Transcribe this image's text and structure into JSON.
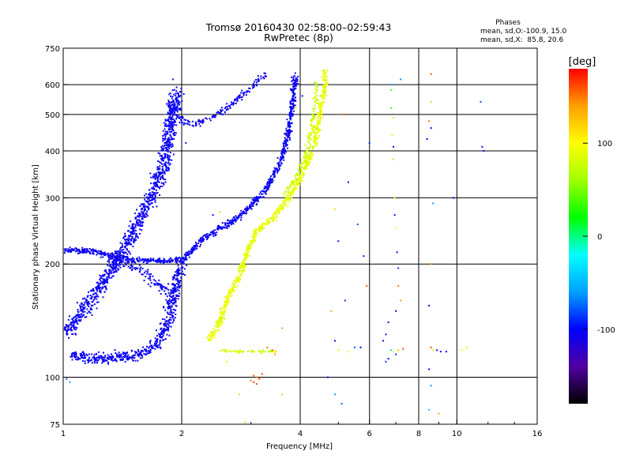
{
  "chart_data": {
    "type": "scatter",
    "title": "Tromsø 20160430 02:58:00–02:59:43",
    "subtitle": "RwPretec (8p)",
    "xlabel": "Frequency [MHz]",
    "ylabel": "Stationary phase Virtual Height [km]",
    "x_scale": "log",
    "y_scale": "log",
    "xlim": [
      1,
      16
    ],
    "ylim": [
      75,
      750
    ],
    "x_ticks": [
      1,
      2,
      4,
      6,
      8,
      10,
      16
    ],
    "y_ticks": [
      75,
      100,
      200,
      300,
      400,
      500,
      600,
      750
    ],
    "x_gridlines": [
      2,
      4,
      6,
      8,
      10
    ],
    "y_gridlines": [
      100,
      200,
      300,
      400,
      500,
      600
    ],
    "grid": true,
    "stats": {
      "heading": "Phases",
      "line1": "mean, sd,O:-100.9, 15.0",
      "line2": "mean, sd,X:  85.8, 20.6"
    },
    "colorbar": {
      "label": "[deg]",
      "range": [
        -180,
        180
      ],
      "ticks": [
        100,
        0,
        -100
      ],
      "colors": [
        "#000000",
        "#5000a0",
        "#0000ff",
        "#00a0ff",
        "#00ffff",
        "#00ff00",
        "#a0ff00",
        "#ffff00",
        "#ffa000",
        "#ff0000"
      ]
    },
    "traces": [
      {
        "mode": "O",
        "phase_center": -105,
        "phase_spread": 15,
        "polyline": [
          [
            1.0,
            218
          ],
          [
            1.18,
            216
          ],
          [
            1.35,
            210
          ],
          [
            1.5,
            205
          ],
          [
            1.65,
            205
          ],
          [
            1.8,
            203
          ],
          [
            1.9,
            205
          ],
          [
            2.0,
            205
          ],
          [
            2.1,
            215
          ],
          [
            2.25,
            232
          ],
          [
            2.45,
            245
          ],
          [
            2.7,
            260
          ],
          [
            3.0,
            285
          ],
          [
            3.3,
            320
          ],
          [
            3.55,
            370
          ],
          [
            3.7,
            430
          ],
          [
            3.8,
            500
          ],
          [
            3.85,
            580
          ],
          [
            3.9,
            640
          ]
        ],
        "spread": 0.025,
        "density": 45
      },
      {
        "mode": "O",
        "phase_center": -105,
        "phase_spread": 15,
        "polyline": [
          [
            1.05,
            115
          ],
          [
            1.2,
            112
          ],
          [
            1.4,
            113
          ],
          [
            1.55,
            114
          ],
          [
            1.65,
            118
          ],
          [
            1.75,
            125
          ],
          [
            1.85,
            140
          ],
          [
            1.9,
            165
          ],
          [
            2.0,
            200
          ]
        ],
        "spread": 0.05,
        "density": 55
      },
      {
        "mode": "O",
        "phase_center": -105,
        "phase_spread": 15,
        "polyline": [
          [
            1.0,
            130
          ],
          [
            1.1,
            145
          ],
          [
            1.2,
            165
          ],
          [
            1.35,
            200
          ],
          [
            1.5,
            240
          ],
          [
            1.6,
            275
          ],
          [
            1.7,
            310
          ],
          [
            1.8,
            370
          ],
          [
            1.85,
            430
          ],
          [
            1.9,
            520
          ],
          [
            1.95,
            580
          ]
        ],
        "spread": 0.06,
        "density": 65
      },
      {
        "mode": "O",
        "phase_center": -105,
        "phase_spread": 15,
        "polyline": [
          [
            1.85,
            540
          ],
          [
            2.0,
            480
          ],
          [
            2.15,
            470
          ],
          [
            2.35,
            490
          ],
          [
            2.6,
            520
          ],
          [
            2.85,
            560
          ],
          [
            3.05,
            600
          ],
          [
            3.3,
            640
          ]
        ],
        "spread": 0.03,
        "density": 25
      },
      {
        "mode": "O",
        "phase_center": -105,
        "phase_spread": 15,
        "polyline": [
          [
            1.3,
            210
          ],
          [
            1.45,
            200
          ],
          [
            1.6,
            190
          ],
          [
            1.75,
            175
          ],
          [
            1.9,
            165
          ]
        ],
        "spread": 0.05,
        "density": 25
      },
      {
        "mode": "X",
        "phase_center": 90,
        "phase_spread": 20,
        "polyline": [
          [
            2.35,
            125
          ],
          [
            2.5,
            140
          ],
          [
            2.6,
            160
          ],
          [
            2.8,
            185
          ],
          [
            2.95,
            220
          ],
          [
            3.1,
            245
          ],
          [
            3.4,
            265
          ],
          [
            3.7,
            295
          ],
          [
            3.95,
            330
          ],
          [
            4.15,
            370
          ],
          [
            4.35,
            420
          ],
          [
            4.5,
            500
          ],
          [
            4.6,
            580
          ],
          [
            4.65,
            650
          ]
        ],
        "spread": 0.025,
        "density": 45
      },
      {
        "mode": "X",
        "phase_center": 80,
        "phase_spread": 30,
        "polyline": [
          [
            2.5,
            118
          ],
          [
            2.8,
            117
          ],
          [
            3.0,
            117
          ],
          [
            3.2,
            117
          ],
          [
            3.5,
            117
          ]
        ],
        "spread": 0.012,
        "density": 16
      },
      {
        "mode": "X",
        "phase_center": 80,
        "phase_spread": 20,
        "polyline": [
          [
            3.6,
            300
          ],
          [
            3.9,
            340
          ],
          [
            4.1,
            380
          ],
          [
            4.25,
            440
          ],
          [
            4.35,
            520
          ],
          [
            4.4,
            600
          ]
        ],
        "spread": 0.02,
        "density": 20
      }
    ],
    "scattered_points": [
      [
        6.8,
        600,
        -60
      ],
      [
        6.8,
        580,
        40
      ],
      [
        6.8,
        520,
        30
      ],
      [
        6.9,
        490,
        110
      ],
      [
        6.85,
        440,
        90
      ],
      [
        6.9,
        410,
        -100
      ],
      [
        6.9,
        380,
        120
      ],
      [
        6.95,
        300,
        80
      ],
      [
        6.95,
        270,
        -110
      ],
      [
        7.0,
        250,
        100
      ],
      [
        7.05,
        215,
        -100
      ],
      [
        7.1,
        195,
        -90
      ],
      [
        7.1,
        175,
        150
      ],
      [
        7.2,
        160,
        140
      ],
      [
        7.0,
        150,
        -100
      ],
      [
        6.7,
        140,
        -100
      ],
      [
        6.6,
        130,
        -95
      ],
      [
        6.5,
        125,
        -100
      ],
      [
        6.8,
        118,
        -40
      ],
      [
        6.9,
        117,
        90
      ],
      [
        7.1,
        118,
        130
      ],
      [
        7.3,
        119,
        160
      ],
      [
        7.0,
        115,
        -90
      ],
      [
        6.7,
        112,
        -100
      ],
      [
        6.6,
        110,
        -90
      ],
      [
        8.6,
        640,
        160
      ],
      [
        8.6,
        540,
        120
      ],
      [
        8.5,
        480,
        150
      ],
      [
        8.6,
        460,
        -100
      ],
      [
        8.4,
        430,
        -110
      ],
      [
        8.7,
        290,
        -60
      ],
      [
        8.6,
        200,
        150
      ],
      [
        8.5,
        155,
        -100
      ],
      [
        8.6,
        120,
        160
      ],
      [
        8.7,
        118,
        110
      ],
      [
        8.9,
        118,
        -100
      ],
      [
        9.1,
        117,
        -100
      ],
      [
        9.4,
        117,
        -110
      ],
      [
        8.5,
        105,
        -100
      ],
      [
        8.6,
        95,
        -60
      ],
      [
        8.5,
        82,
        -40
      ],
      [
        9.0,
        80,
        140
      ],
      [
        9.8,
        300,
        -100
      ],
      [
        10.3,
        118,
        100
      ],
      [
        10.6,
        120,
        80
      ],
      [
        11.5,
        540,
        -80
      ],
      [
        11.6,
        410,
        -110
      ],
      [
        11.7,
        400,
        -100
      ],
      [
        5.1,
        500,
        150
      ],
      [
        5.3,
        330,
        -100
      ],
      [
        5.6,
        255,
        -80
      ],
      [
        5.8,
        210,
        -100
      ],
      [
        5.9,
        175,
        160
      ],
      [
        5.0,
        230,
        -110
      ],
      [
        4.9,
        280,
        120
      ],
      [
        5.5,
        120,
        -80
      ],
      [
        5.7,
        120,
        -100
      ],
      [
        5.3,
        117,
        100
      ],
      [
        5.0,
        118,
        80
      ],
      [
        4.8,
        150,
        130
      ],
      [
        5.2,
        160,
        -90
      ],
      [
        4.9,
        125,
        -100
      ],
      [
        4.7,
        100,
        -100
      ],
      [
        4.9,
        90,
        -60
      ],
      [
        5.1,
        85,
        -70
      ],
      [
        3.05,
        101,
        160
      ],
      [
        3.1,
        100,
        150
      ],
      [
        3.15,
        99,
        170
      ],
      [
        3.0,
        98,
        150
      ],
      [
        3.1,
        96,
        160
      ],
      [
        3.2,
        102,
        160
      ],
      [
        3.05,
        97,
        170
      ],
      [
        3.3,
        120,
        150
      ],
      [
        3.4,
        118,
        160
      ],
      [
        3.45,
        115,
        140
      ],
      [
        3.6,
        90,
        120
      ],
      [
        2.6,
        110,
        80
      ],
      [
        2.8,
        90,
        60
      ],
      [
        2.9,
        76,
        70
      ],
      [
        1.04,
        97,
        -60
      ],
      [
        1.02,
        99,
        -80
      ],
      [
        1.9,
        620,
        -110
      ],
      [
        2.05,
        420,
        -120
      ],
      [
        2.4,
        270,
        -100
      ],
      [
        2.5,
        275,
        60
      ],
      [
        3.9,
        520,
        90
      ],
      [
        4.05,
        560,
        -110
      ],
      [
        4.5,
        560,
        120
      ],
      [
        6.0,
        420,
        -90
      ],
      [
        7.2,
        620,
        -60
      ],
      [
        3.6,
        135,
        140
      ]
    ]
  }
}
